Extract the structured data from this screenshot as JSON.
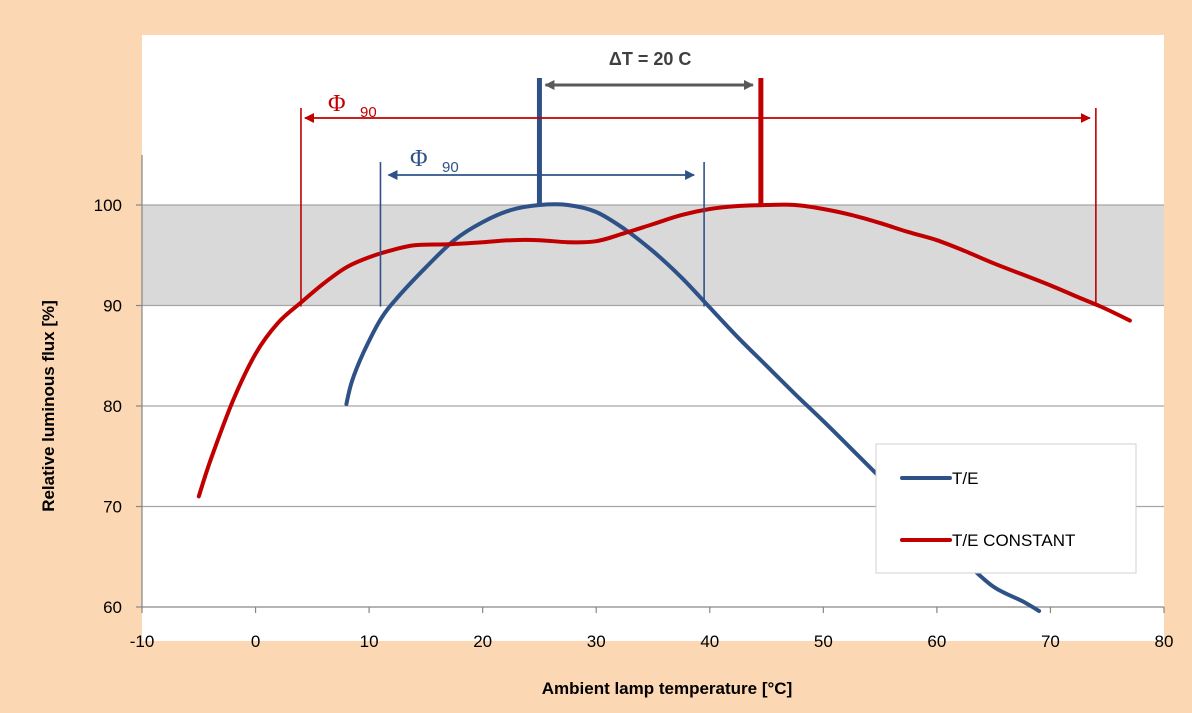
{
  "chart_data": {
    "type": "line",
    "xlabel": "Ambient lamp temperature [°C]",
    "ylabel": "Relative luminous flux [%]",
    "xlim": [
      -10,
      80
    ],
    "ylim": [
      60,
      100
    ],
    "x_ticks": [
      "-10",
      "0",
      "10",
      "20",
      "30",
      "40",
      "50",
      "60",
      "70",
      "80"
    ],
    "y_ticks": [
      "60",
      "70",
      "80",
      "90",
      "100"
    ],
    "grid": "horizontal",
    "band": {
      "from": 90,
      "to": 100,
      "color": "#d9d9d9"
    },
    "legend_position": "bottom-right",
    "series": [
      {
        "name": "T/E",
        "color": "#2e5288",
        "points": [
          [
            8,
            80.2
          ],
          [
            8.5,
            82.5
          ],
          [
            9.5,
            85.3
          ],
          [
            11,
            88.6
          ],
          [
            12.5,
            90.8
          ],
          [
            15,
            93.8
          ],
          [
            17.5,
            96.5
          ],
          [
            20,
            98.3
          ],
          [
            22.5,
            99.5
          ],
          [
            25,
            100
          ],
          [
            27.5,
            100
          ],
          [
            30,
            99.3
          ],
          [
            32.5,
            97.6
          ],
          [
            35,
            95.4
          ],
          [
            37.5,
            92.8
          ],
          [
            40,
            89.8
          ],
          [
            42.5,
            86.8
          ],
          [
            45,
            84
          ],
          [
            47.5,
            81.2
          ],
          [
            50,
            78.5
          ],
          [
            52.5,
            75.7
          ],
          [
            55,
            72.9
          ],
          [
            57.5,
            70.1
          ],
          [
            60,
            67.3
          ],
          [
            62.5,
            64.5
          ],
          [
            65,
            62
          ],
          [
            67.5,
            60.6
          ],
          [
            69,
            59.6
          ]
        ]
      },
      {
        "name": "T/E CONSTANT",
        "color": "#c00000",
        "points": [
          [
            -5,
            71
          ],
          [
            -4,
            74.5
          ],
          [
            -2,
            80.5
          ],
          [
            0,
            85.2
          ],
          [
            2,
            88.3
          ],
          [
            4,
            90.3
          ],
          [
            6,
            92.2
          ],
          [
            8,
            93.8
          ],
          [
            10,
            94.8
          ],
          [
            12,
            95.5
          ],
          [
            14,
            96
          ],
          [
            17,
            96.1
          ],
          [
            20,
            96.3
          ],
          [
            22.5,
            96.5
          ],
          [
            25,
            96.5
          ],
          [
            27.5,
            96.3
          ],
          [
            30,
            96.4
          ],
          [
            32.5,
            97.2
          ],
          [
            35,
            98.1
          ],
          [
            37.5,
            99
          ],
          [
            40,
            99.6
          ],
          [
            42.5,
            99.9
          ],
          [
            45,
            100
          ],
          [
            47.5,
            100
          ],
          [
            50,
            99.6
          ],
          [
            52.5,
            99
          ],
          [
            55,
            98.2
          ],
          [
            57.5,
            97.3
          ],
          [
            60,
            96.5
          ],
          [
            62.5,
            95.4
          ],
          [
            65,
            94.2
          ],
          [
            67.5,
            93.1
          ],
          [
            70,
            92
          ],
          [
            72.5,
            90.8
          ],
          [
            74,
            90.1
          ],
          [
            75,
            89.6
          ],
          [
            77,
            88.5
          ]
        ]
      }
    ],
    "annotations": {
      "delta_t": {
        "label": "ΔT = 20  C",
        "from_x": 25,
        "to_x": 44.5,
        "color": "#595959"
      },
      "phi_red": {
        "symbol": "Φ",
        "sub": "90",
        "from_x": 4,
        "to_x": 74,
        "color": "#c00000"
      },
      "phi_blue": {
        "symbol": "Φ",
        "sub": "90",
        "from_x": 11,
        "to_x": 39.5,
        "color": "#2e5288"
      },
      "markers": [
        {
          "x": 25,
          "color": "#2e5288"
        },
        {
          "x": 44.5,
          "color": "#c00000"
        }
      ]
    }
  }
}
